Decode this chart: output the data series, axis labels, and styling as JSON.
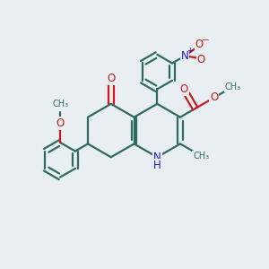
{
  "bg_color": "#e8eef2",
  "bond_color": "#2d6b5e",
  "n_color": "#1a1acc",
  "o_color": "#cc1a1a",
  "line_width": 1.6,
  "font_size": 8.5,
  "fig_width": 3.0,
  "fig_height": 3.0,
  "xlim": [
    0,
    10
  ],
  "ylim": [
    0,
    10
  ]
}
